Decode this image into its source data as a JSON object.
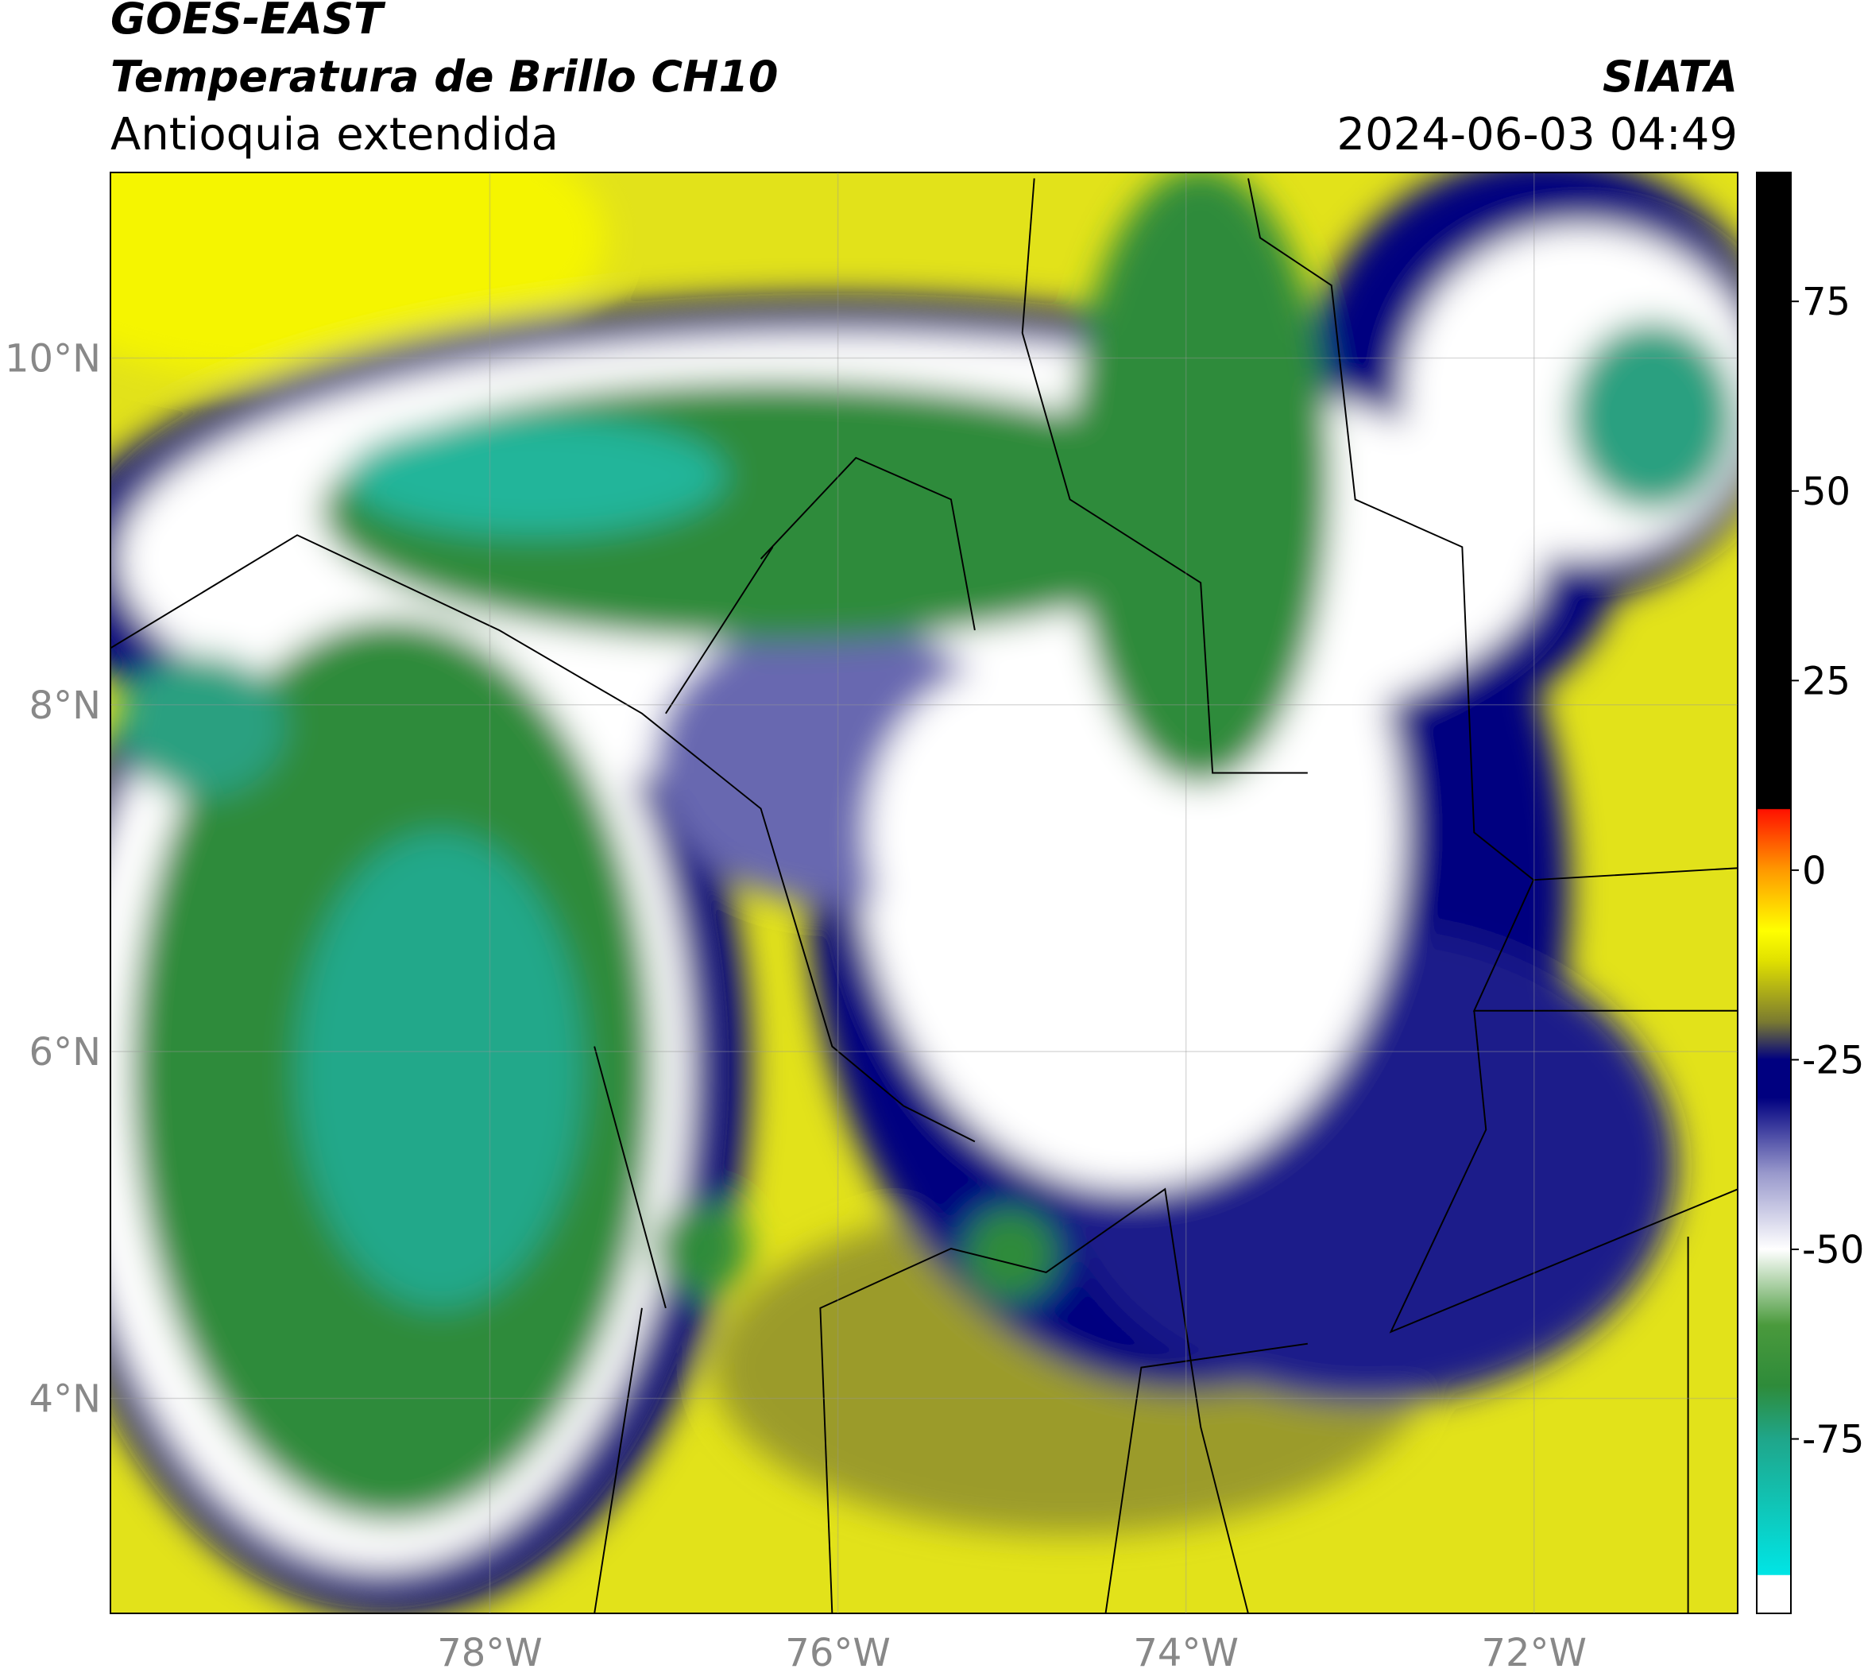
{
  "header": {
    "title": "GOES-EAST",
    "subtitle": "Temperatura de Brillo CH10",
    "region": "Antioquia extendida",
    "source": "SIATA",
    "datetime": "2024-06-03 04:49"
  },
  "chart_data": {
    "type": "map",
    "xlim": [
      -80.18,
      -70.83
    ],
    "ylim": [
      2.76,
      11.07
    ],
    "xticks": [
      {
        "value": -78,
        "label": "78°W"
      },
      {
        "value": -76,
        "label": "76°W"
      },
      {
        "value": -74,
        "label": "74°W"
      },
      {
        "value": -72,
        "label": "72°W"
      }
    ],
    "yticks": [
      {
        "value": 4,
        "label": "4°N"
      },
      {
        "value": 6,
        "label": "6°N"
      },
      {
        "value": 8,
        "label": "8°N"
      },
      {
        "value": 10,
        "label": "10°N"
      }
    ],
    "grid": true,
    "colorbar": {
      "clim": [
        -98,
        92
      ],
      "ticks": [
        -75,
        -50,
        -25,
        0,
        25,
        50,
        75
      ],
      "colormap": [
        {
          "value": -98,
          "color": "#ffffff"
        },
        {
          "value": -93,
          "color": "#ffffff"
        },
        {
          "value": -92.9,
          "color": "#00e5e5"
        },
        {
          "value": -75,
          "color": "#1fa68a"
        },
        {
          "value": -68,
          "color": "#2e8b3a"
        },
        {
          "value": -60,
          "color": "#4a9a3c"
        },
        {
          "value": -50,
          "color": "#ffffff"
        },
        {
          "value": -40,
          "color": "#9999cc"
        },
        {
          "value": -30,
          "color": "#000080"
        },
        {
          "value": -25,
          "color": "#000080"
        },
        {
          "value": -20,
          "color": "#7a7a30"
        },
        {
          "value": -12,
          "color": "#e0e000"
        },
        {
          "value": -8,
          "color": "#ffff00"
        },
        {
          "value": 0,
          "color": "#ff9900"
        },
        {
          "value": 8,
          "color": "#ff1100"
        },
        {
          "value": 8.1,
          "color": "#000000"
        },
        {
          "value": 92,
          "color": "#000000"
        }
      ]
    }
  }
}
